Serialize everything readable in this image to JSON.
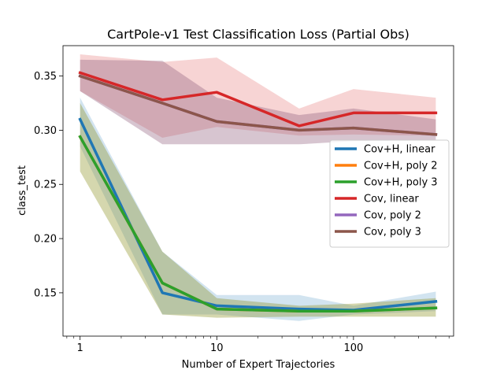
{
  "chart_data": {
    "type": "line",
    "title": "CartPole-v1 Test Classification Loss (Partial Obs)",
    "xlabel": "Number of Expert Trajectories",
    "ylabel": "class_test",
    "xscale": "log",
    "xlim": [
      0.75,
      540
    ],
    "ylim": [
      0.11,
      0.378
    ],
    "grid": false,
    "legend_position": "right-middle",
    "x_ticks": [
      {
        "value": 1,
        "label": "1"
      },
      {
        "value": 10,
        "label": "10"
      },
      {
        "value": 100,
        "label": "100"
      }
    ],
    "y_ticks": [
      {
        "value": 0.15,
        "label": "0.15"
      },
      {
        "value": 0.2,
        "label": "0.20"
      },
      {
        "value": 0.25,
        "label": "0.25"
      },
      {
        "value": 0.3,
        "label": "0.30"
      },
      {
        "value": 0.35,
        "label": "0.35"
      }
    ],
    "x": [
      1,
      4,
      10,
      40,
      100,
      400
    ],
    "series": [
      {
        "name": "Cov+H, linear",
        "color": "#1f77b4",
        "values": [
          0.31,
          0.15,
          0.138,
          0.135,
          0.134,
          0.142
        ],
        "lower": [
          0.285,
          0.13,
          0.13,
          0.124,
          0.13,
          0.133
        ],
        "upper": [
          0.33,
          0.188,
          0.148,
          0.148,
          0.138,
          0.151
        ]
      },
      {
        "name": "Cov+H, poly 2",
        "color": "#ff7f0e",
        "values": [
          0.294,
          0.159,
          0.135,
          0.133,
          0.133,
          0.136
        ],
        "lower": [
          0.262,
          0.13,
          0.127,
          0.128,
          0.128,
          0.128
        ],
        "upper": [
          0.325,
          0.188,
          0.145,
          0.138,
          0.14,
          0.145
        ]
      },
      {
        "name": "Cov+H, poly 3",
        "color": "#2ca02c",
        "values": [
          0.294,
          0.159,
          0.135,
          0.133,
          0.133,
          0.136
        ],
        "lower": [
          0.262,
          0.13,
          0.127,
          0.128,
          0.128,
          0.128
        ],
        "upper": [
          0.325,
          0.188,
          0.145,
          0.138,
          0.14,
          0.145
        ]
      },
      {
        "name": "Cov, linear",
        "color": "#d62728",
        "values": [
          0.353,
          0.328,
          0.335,
          0.304,
          0.316,
          0.316
        ],
        "lower": [
          0.336,
          0.293,
          0.303,
          0.295,
          0.296,
          0.295
        ],
        "upper": [
          0.37,
          0.363,
          0.367,
          0.32,
          0.338,
          0.33
        ]
      },
      {
        "name": "Cov, poly 2",
        "color": "#9467bd",
        "values": [
          0.35,
          0.325,
          0.308,
          0.3,
          0.302,
          0.296
        ],
        "lower": [
          0.336,
          0.287,
          0.287,
          0.287,
          0.29,
          0.291
        ],
        "upper": [
          0.365,
          0.364,
          0.33,
          0.314,
          0.32,
          0.31
        ]
      },
      {
        "name": "Cov, poly 3",
        "color": "#8c564b",
        "values": [
          0.35,
          0.325,
          0.308,
          0.3,
          0.302,
          0.296
        ],
        "lower": [
          0.336,
          0.287,
          0.287,
          0.287,
          0.29,
          0.291
        ],
        "upper": [
          0.365,
          0.364,
          0.33,
          0.314,
          0.32,
          0.31
        ]
      }
    ]
  }
}
